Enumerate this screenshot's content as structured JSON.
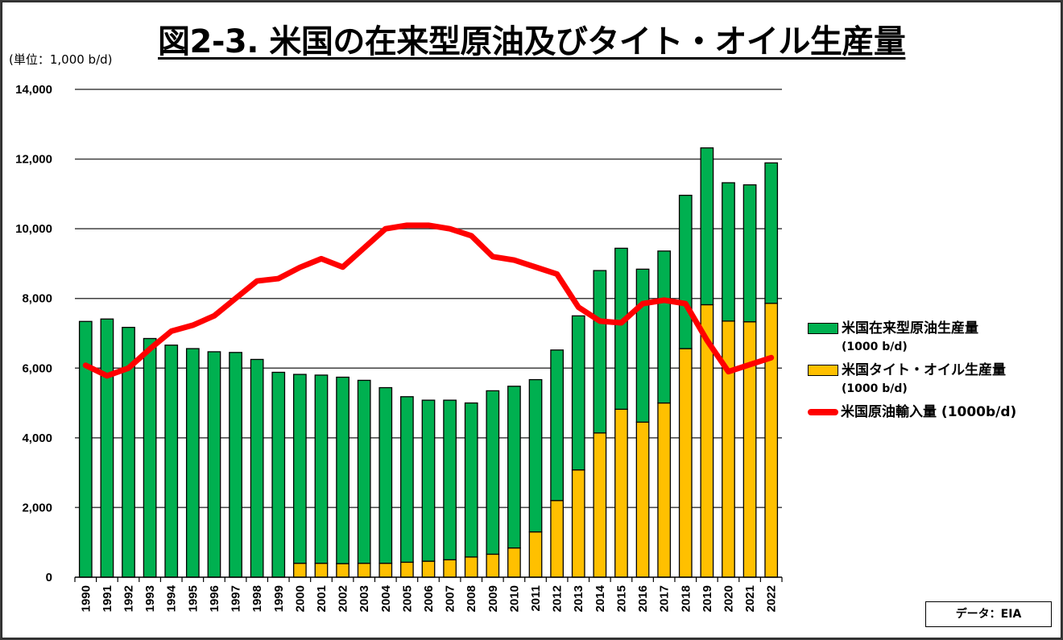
{
  "colors": {
    "conventional": "#00b050",
    "tight_oil": "#ffc000",
    "imports": "#ff0000",
    "grid": "#404040"
  },
  "chart_data": {
    "type": "bar",
    "stacked": true,
    "title": "図2-3. 米国の在来型原油及びタイト・オイル生産量",
    "ylabel": "(単位：1,000 b/d)",
    "xlabel": "",
    "ylim": [
      0,
      14000
    ],
    "yticks": [
      "0",
      "2,000",
      "4,000",
      "6,000",
      "8,000",
      "10,000",
      "12,000",
      "14,000"
    ],
    "ytick_values": [
      0,
      2000,
      4000,
      6000,
      8000,
      10000,
      12000,
      14000
    ],
    "grid": true,
    "legend_position": "right",
    "categories": [
      "1990",
      "1991",
      "1992",
      "1993",
      "1994",
      "1995",
      "1996",
      "1997",
      "1998",
      "1999",
      "2000",
      "2001",
      "2002",
      "2003",
      "2004",
      "2005",
      "2006",
      "2007",
      "2008",
      "2009",
      "2010",
      "2011",
      "2012",
      "2013",
      "2014",
      "2015",
      "2016",
      "2017",
      "2018",
      "2019",
      "2020",
      "2021",
      "2022"
    ],
    "series": [
      {
        "name": "米国在来型原油生産量",
        "unit": "(1000 b/d)",
        "type": "bar",
        "color": "#00b050",
        "values": [
          7340,
          7410,
          7170,
          6850,
          6660,
          6560,
          6470,
          6450,
          6250,
          5880,
          5420,
          5400,
          5350,
          5250,
          5040,
          4750,
          4620,
          4580,
          4420,
          4690,
          4640,
          4370,
          4320,
          4420,
          4660,
          4620,
          4390,
          4360,
          4400,
          4500,
          3970,
          3930,
          4030
        ]
      },
      {
        "name": "米国タイト・オイル生産量",
        "unit": "(1000 b/d)",
        "type": "bar",
        "color": "#ffc000",
        "values": [
          0,
          0,
          0,
          0,
          0,
          0,
          0,
          0,
          0,
          0,
          400,
          400,
          390,
          400,
          400,
          430,
          460,
          500,
          580,
          660,
          840,
          1300,
          2200,
          3080,
          4140,
          4820,
          4450,
          5000,
          6560,
          7820,
          7350,
          7330,
          7860
        ]
      },
      {
        "name": "米国原油輸入量 (1000b/d)",
        "type": "line",
        "color": "#ff0000",
        "values": [
          6080,
          5780,
          6000,
          6550,
          7060,
          7230,
          7500,
          8000,
          8500,
          8570,
          8890,
          9140,
          8900,
          9450,
          10000,
          10100,
          10100,
          10000,
          9800,
          9200,
          9100,
          8900,
          8700,
          7750,
          7350,
          7300,
          7850,
          7950,
          7850,
          6800,
          5900,
          6100,
          6300
        ]
      }
    ]
  },
  "legend": {
    "items": [
      {
        "label": "米国在来型原油生産量",
        "sub": "(1000 b/d)"
      },
      {
        "label": "米国タイト・オイル生産量",
        "sub": "(1000 b/d)"
      },
      {
        "label": "米国原油輸入量 (1000b/d)"
      }
    ]
  },
  "source": "データ：EIA"
}
